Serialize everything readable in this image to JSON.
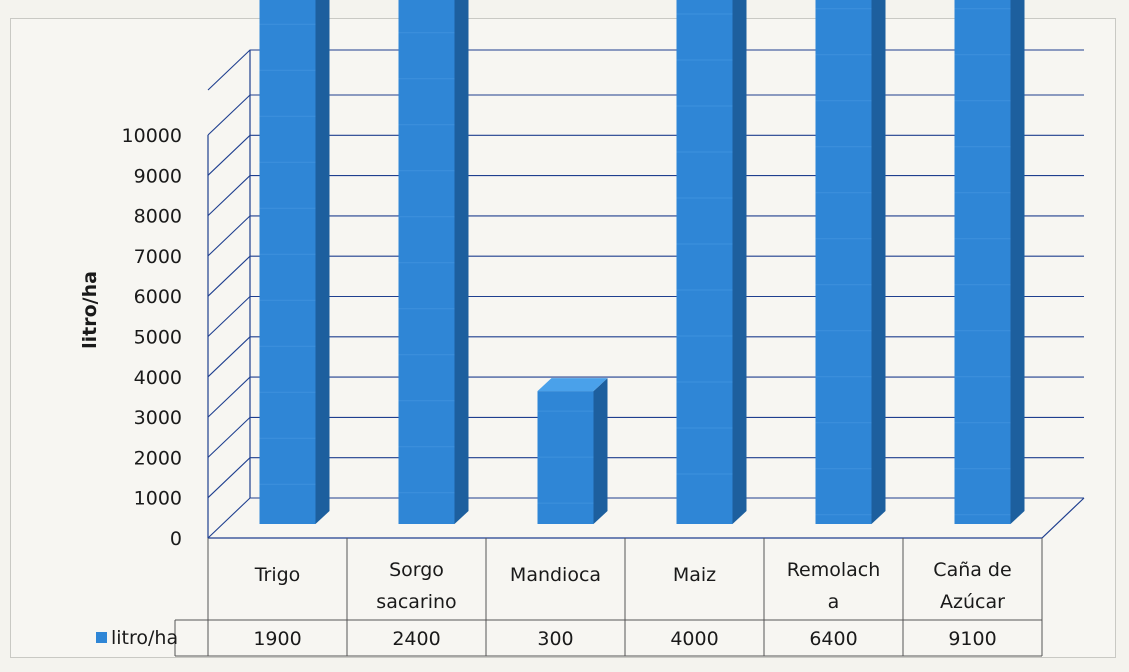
{
  "chart_data": {
    "type": "bar",
    "style": "3d-column",
    "categories": [
      [
        "Trigo"
      ],
      [
        "Sorgo",
        "sacarino"
      ],
      [
        "Mandioca"
      ],
      [
        "Maiz"
      ],
      [
        "Remolach",
        "a"
      ],
      [
        "Caña de",
        "Azúcar"
      ]
    ],
    "series": [
      {
        "name": "litro/ha",
        "values": [
          1900,
          2400,
          300,
          4000,
          6400,
          9100
        ]
      }
    ],
    "ylabel": "litro/ha",
    "ylim": [
      0,
      10000
    ],
    "yticks": [
      0,
      1000,
      2000,
      3000,
      4000,
      5000,
      6000,
      7000,
      8000,
      9000,
      10000
    ],
    "grid": true,
    "data_table": true,
    "legend": "data-table-left"
  },
  "colors": {
    "bar_front": "#2f86d6",
    "bar_side": "#1d5f9e",
    "bar_top": "#4aa1ea",
    "grid": "#1f3f8f",
    "legend_key": "#2f86d6"
  }
}
